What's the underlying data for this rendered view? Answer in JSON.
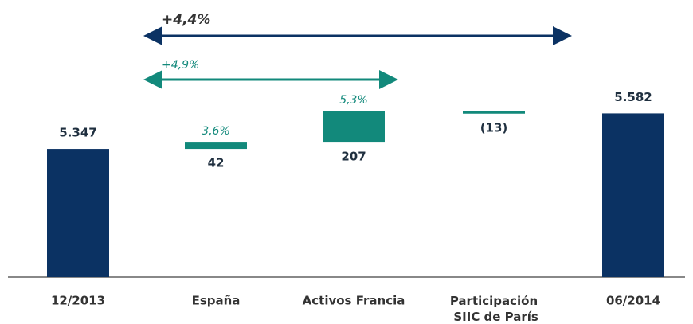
{
  "chart_data": {
    "type": "waterfall",
    "categories": [
      "12/2013",
      "España",
      "Activos Francia",
      "Participación SIIC de París",
      "06/2014"
    ],
    "values": [
      5347,
      42,
      207,
      -13,
      5582
    ],
    "value_labels": [
      "5.347",
      "42",
      "207",
      "(13)",
      "5.582"
    ],
    "kinds": [
      "total",
      "delta",
      "delta",
      "delta",
      "total"
    ],
    "pct_labels": [
      null,
      "3,6%",
      "5,3%",
      null,
      null
    ],
    "total_color": "#0b3263",
    "delta_color": "#12897b",
    "ylim": [
      4500,
      5800
    ],
    "annotations": [
      {
        "text": "+4,4%",
        "color": "#0b3263"
      },
      {
        "text": "+4,9%",
        "color": "#12897b"
      }
    ]
  }
}
